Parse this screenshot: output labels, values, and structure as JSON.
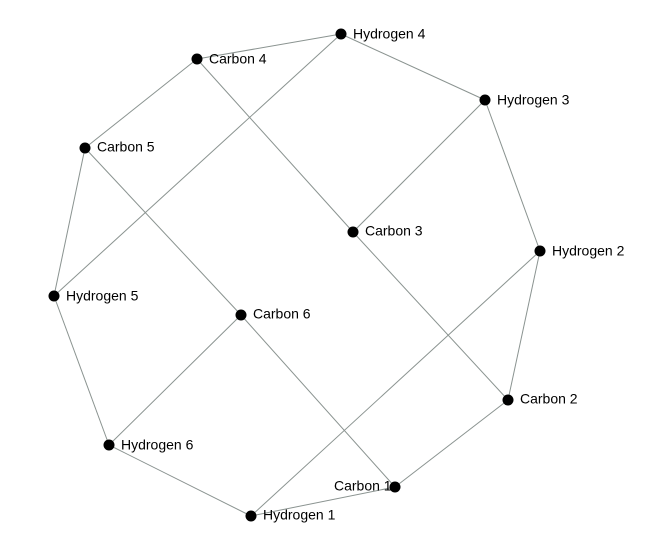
{
  "graph": {
    "nodes": [
      {
        "id": "c1",
        "label": "Carbon 1"
      },
      {
        "id": "c2",
        "label": "Carbon 2"
      },
      {
        "id": "c3",
        "label": "Carbon 3"
      },
      {
        "id": "c4",
        "label": "Carbon 4"
      },
      {
        "id": "c5",
        "label": "Carbon 5"
      },
      {
        "id": "c6",
        "label": "Carbon 6"
      },
      {
        "id": "h1",
        "label": "Hydrogen 1"
      },
      {
        "id": "h2",
        "label": "Hydrogen 2"
      },
      {
        "id": "h3",
        "label": "Hydrogen 3"
      },
      {
        "id": "h4",
        "label": "Hydrogen 4"
      },
      {
        "id": "h5",
        "label": "Hydrogen 5"
      },
      {
        "id": "h6",
        "label": "Hydrogen 6"
      }
    ],
    "edges": [
      [
        "h4",
        "c4"
      ],
      [
        "h4",
        "h3"
      ],
      [
        "h4",
        "h5"
      ],
      [
        "c4",
        "c5"
      ],
      [
        "c4",
        "c3"
      ],
      [
        "h3",
        "c3"
      ],
      [
        "h3",
        "h2"
      ],
      [
        "c5",
        "h5"
      ],
      [
        "c5",
        "c6"
      ],
      [
        "h2",
        "c2"
      ],
      [
        "h2",
        "h1"
      ],
      [
        "c3",
        "c2"
      ],
      [
        "h5",
        "h6"
      ],
      [
        "c6",
        "h6"
      ],
      [
        "c6",
        "c1"
      ],
      [
        "c2",
        "c1"
      ],
      [
        "c1",
        "h1"
      ],
      [
        "h6",
        "h1"
      ]
    ]
  }
}
